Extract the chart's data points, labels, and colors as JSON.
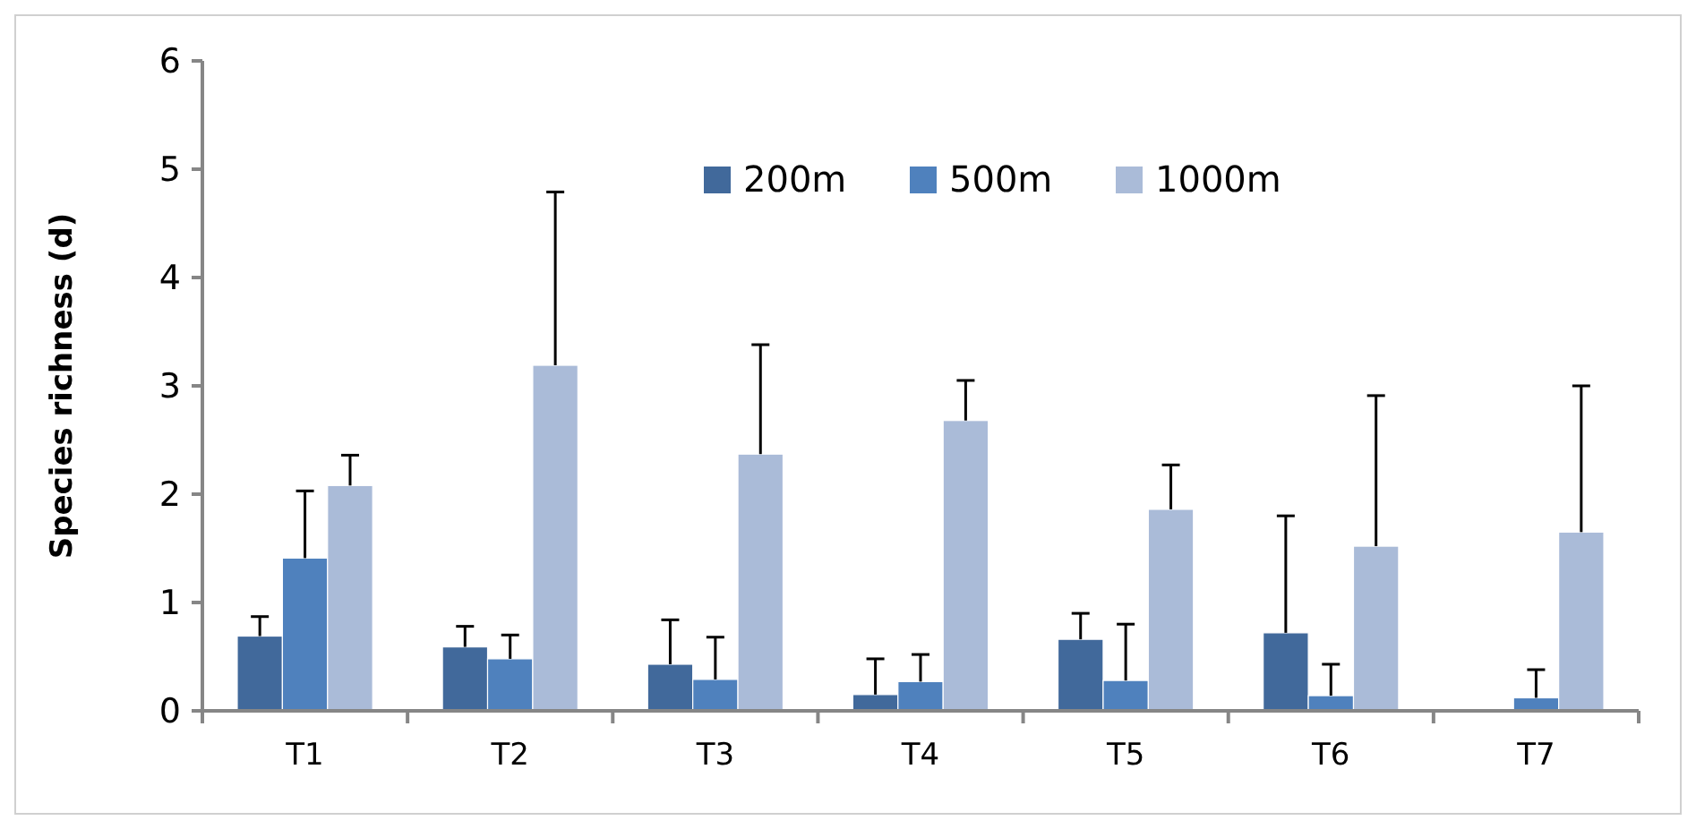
{
  "chart_data": {
    "type": "bar",
    "ylabel": "Species richness (d)",
    "categories": [
      "T1",
      "T2",
      "T3",
      "T4",
      "T5",
      "T6",
      "T7"
    ],
    "series": [
      {
        "name": "200m",
        "color": "#41699b",
        "values": [
          0.69,
          0.59,
          0.43,
          0.15,
          0.66,
          0.72,
          0
        ],
        "errors": [
          [
            0.69,
            0.87
          ],
          [
            0.59,
            0.78
          ],
          [
            0.43,
            0.84
          ],
          [
            0.15,
            0.48
          ],
          [
            0.66,
            0.9
          ],
          [
            0.72,
            1.8
          ],
          null
        ]
      },
      {
        "name": "500m",
        "color": "#4f81bd",
        "values": [
          1.41,
          0.48,
          0.29,
          0.27,
          0.28,
          0.14,
          0.12
        ],
        "errors": [
          [
            1.41,
            2.03
          ],
          [
            0.48,
            0.7
          ],
          [
            0.29,
            0.68
          ],
          [
            0.27,
            0.52
          ],
          [
            0.28,
            0.8
          ],
          [
            0.14,
            0.43
          ],
          [
            0.12,
            0.38
          ]
        ]
      },
      {
        "name": "1000m",
        "color": "#aabbd8",
        "values": [
          2.08,
          3.19,
          2.37,
          2.68,
          1.86,
          1.52,
          1.65
        ],
        "errors": [
          [
            2.08,
            2.36
          ],
          [
            3.19,
            4.79
          ],
          [
            2.37,
            3.38
          ],
          [
            2.68,
            3.05
          ],
          [
            1.86,
            2.27
          ],
          [
            1.52,
            2.91
          ],
          [
            1.65,
            3.0
          ]
        ]
      }
    ],
    "ylim": [
      0,
      6
    ],
    "yticks": [
      0,
      1,
      2,
      3,
      4,
      5,
      6
    ],
    "grid": false,
    "legend": "top"
  }
}
